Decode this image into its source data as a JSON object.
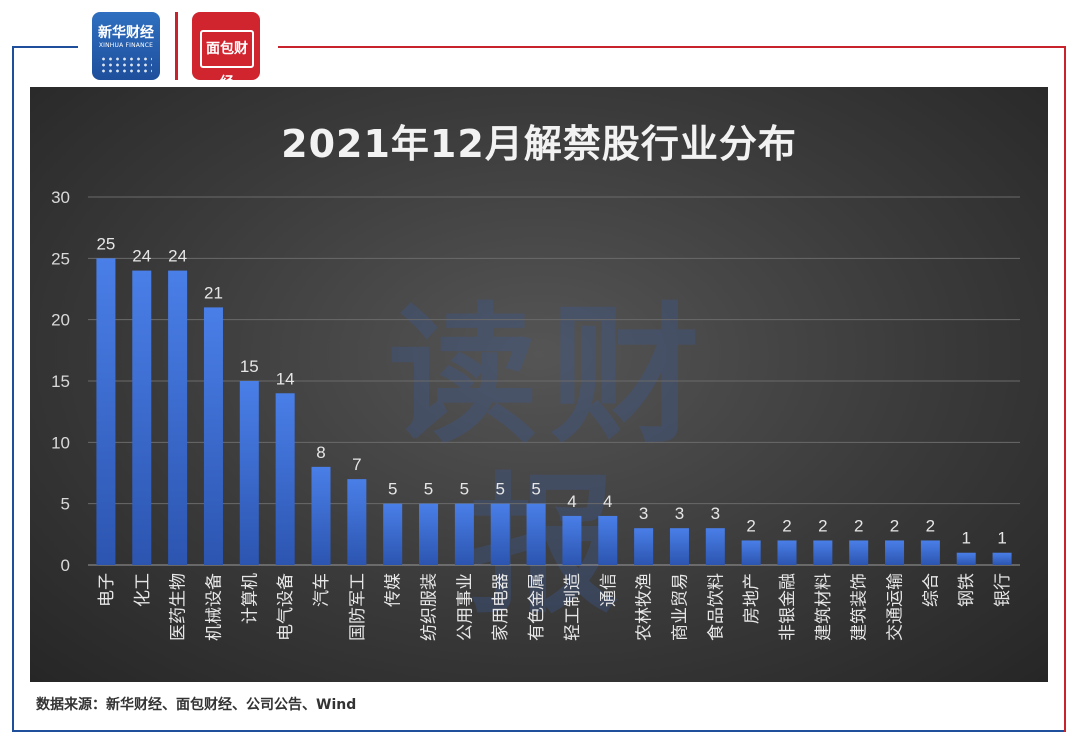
{
  "header": {
    "logo_xinhua_text": "新华财经",
    "logo_xinhua_sub": "XINHUA FINANCE",
    "logo_mianbao_text": "面包财经"
  },
  "colors": {
    "frame_blue": "#1f4e9b",
    "frame_red": "#c8222d",
    "bar": "#3d6fd6"
  },
  "watermark": "读财报",
  "source": "数据来源：新华财经、面包财经、公司公告、Wind",
  "chart_data": {
    "type": "bar",
    "title": "2021年12月解禁股行业分布",
    "xlabel": "",
    "ylabel": "",
    "ylim": [
      0,
      30
    ],
    "yticks": [
      0,
      5,
      10,
      15,
      20,
      25,
      30
    ],
    "grid": true,
    "categories": [
      "电子",
      "化工",
      "医药生物",
      "机械设备",
      "计算机",
      "电气设备",
      "汽车",
      "国防军工",
      "传媒",
      "纺织服装",
      "公用事业",
      "家用电器",
      "有色金属",
      "轻工制造",
      "通信",
      "农林牧渔",
      "商业贸易",
      "食品饮料",
      "房地产",
      "非银金融",
      "建筑材料",
      "建筑装饰",
      "交通运输",
      "综合",
      "钢铁",
      "银行"
    ],
    "values": [
      25,
      24,
      24,
      21,
      15,
      14,
      8,
      7,
      5,
      5,
      5,
      5,
      5,
      4,
      4,
      3,
      3,
      3,
      2,
      2,
      2,
      2,
      2,
      2,
      1,
      1
    ]
  }
}
